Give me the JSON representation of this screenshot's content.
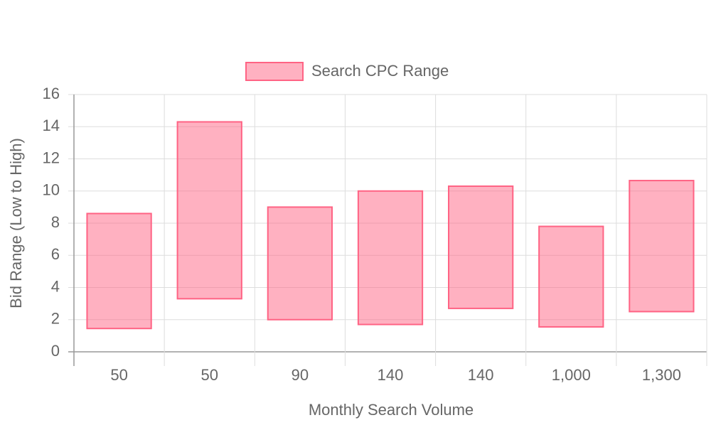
{
  "chart_data": {
    "type": "floating-bar",
    "x_label": "Monthly Search Volume",
    "y_label": "Bid Range (Low to High)",
    "categories": [
      "50",
      "50",
      "90",
      "140",
      "140",
      "1,000",
      "1,300"
    ],
    "series": [
      {
        "name": "Search CPC Range",
        "color": "#ff6384",
        "values": [
          [
            1.45,
            8.6
          ],
          [
            3.3,
            14.3
          ],
          [
            2.0,
            9.0
          ],
          [
            1.7,
            10.0
          ],
          [
            2.7,
            10.3
          ],
          [
            1.55,
            7.8
          ],
          [
            2.5,
            10.65
          ]
        ]
      }
    ],
    "ylim": [
      0,
      16
    ],
    "yticks": [
      0,
      2,
      4,
      6,
      8,
      10,
      12,
      14,
      16
    ],
    "grid": true,
    "legend": "top"
  }
}
